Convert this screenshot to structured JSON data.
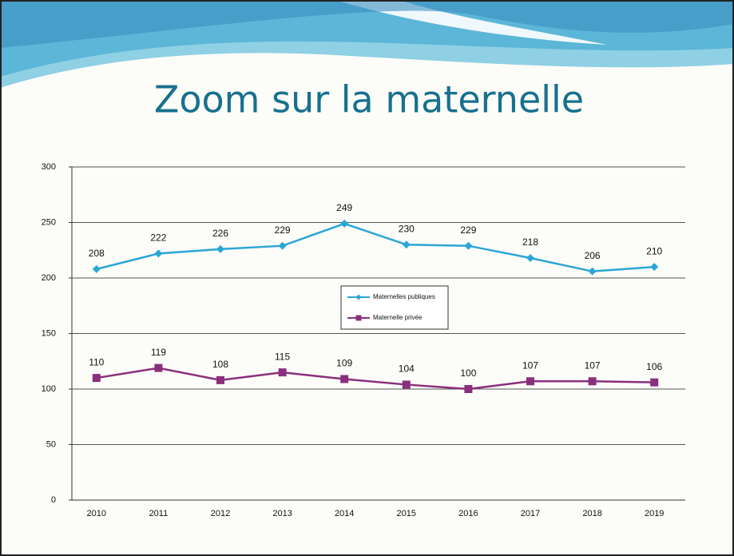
{
  "chart_data": {
    "type": "line",
    "title": "Zoom sur la maternelle",
    "categories": [
      "2010",
      "2011",
      "2012",
      "2013",
      "2014",
      "2015",
      "2016",
      "2017",
      "2018",
      "2019"
    ],
    "series": [
      {
        "name": "Maternelles publiques",
        "color": "#2aa6d6",
        "marker": "diamond",
        "values": [
          208,
          222,
          226,
          229,
          249,
          230,
          229,
          218,
          206,
          210
        ]
      },
      {
        "name": "Maternelle privée",
        "color": "#8a2f7c",
        "marker": "square",
        "values": [
          110,
          119,
          108,
          115,
          109,
          104,
          100,
          107,
          107,
          106
        ]
      }
    ],
    "ylim": [
      0,
      300
    ],
    "yticks": [
      0,
      50,
      100,
      150,
      200,
      250,
      300
    ],
    "grid": true,
    "data_labels": true,
    "legend": "center"
  }
}
